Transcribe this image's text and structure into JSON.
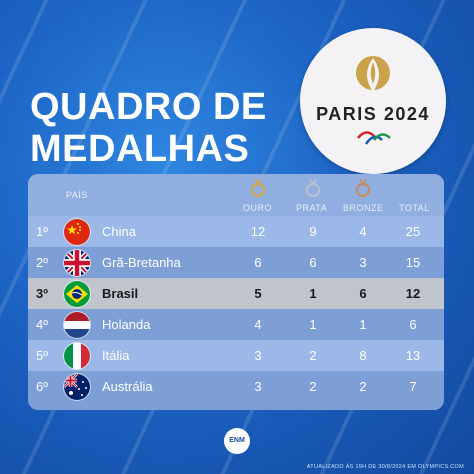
{
  "title_line1": "QUADRO DE",
  "title_line2": "MEDALHAS",
  "logo": {
    "text": "PARIS 2024"
  },
  "headers": {
    "country": "PAÍS",
    "gold": "OURO",
    "silver": "PRATA",
    "bronze": "BRONZE",
    "total": "TOTAL"
  },
  "rows": [
    {
      "rank": "1º",
      "country": "China",
      "gold": "12",
      "silver": "9",
      "bronze": "4",
      "total": "25"
    },
    {
      "rank": "2º",
      "country": "Grã-Bretanha",
      "gold": "6",
      "silver": "6",
      "bronze": "3",
      "total": "15"
    },
    {
      "rank": "3º",
      "country": "Brasil",
      "gold": "5",
      "silver": "1",
      "bronze": "6",
      "total": "12"
    },
    {
      "rank": "4º",
      "country": "Holanda",
      "gold": "4",
      "silver": "1",
      "bronze": "1",
      "total": "6"
    },
    {
      "rank": "5º",
      "country": "Itália",
      "gold": "3",
      "silver": "2",
      "bronze": "8",
      "total": "13"
    },
    {
      "rank": "6º",
      "country": "Austrália",
      "gold": "3",
      "silver": "2",
      "bronze": "2",
      "total": "7"
    }
  ],
  "brand": "ENM",
  "footnote": "ATUALIZADO ÀS 19H DE 30/8/2024 EM OLYMPICS.COM",
  "colors": {
    "gold": "#d4a63a",
    "silver": "#b9c2cc",
    "bronze": "#c98a5a",
    "highlight_row": "#c0c4cc"
  }
}
